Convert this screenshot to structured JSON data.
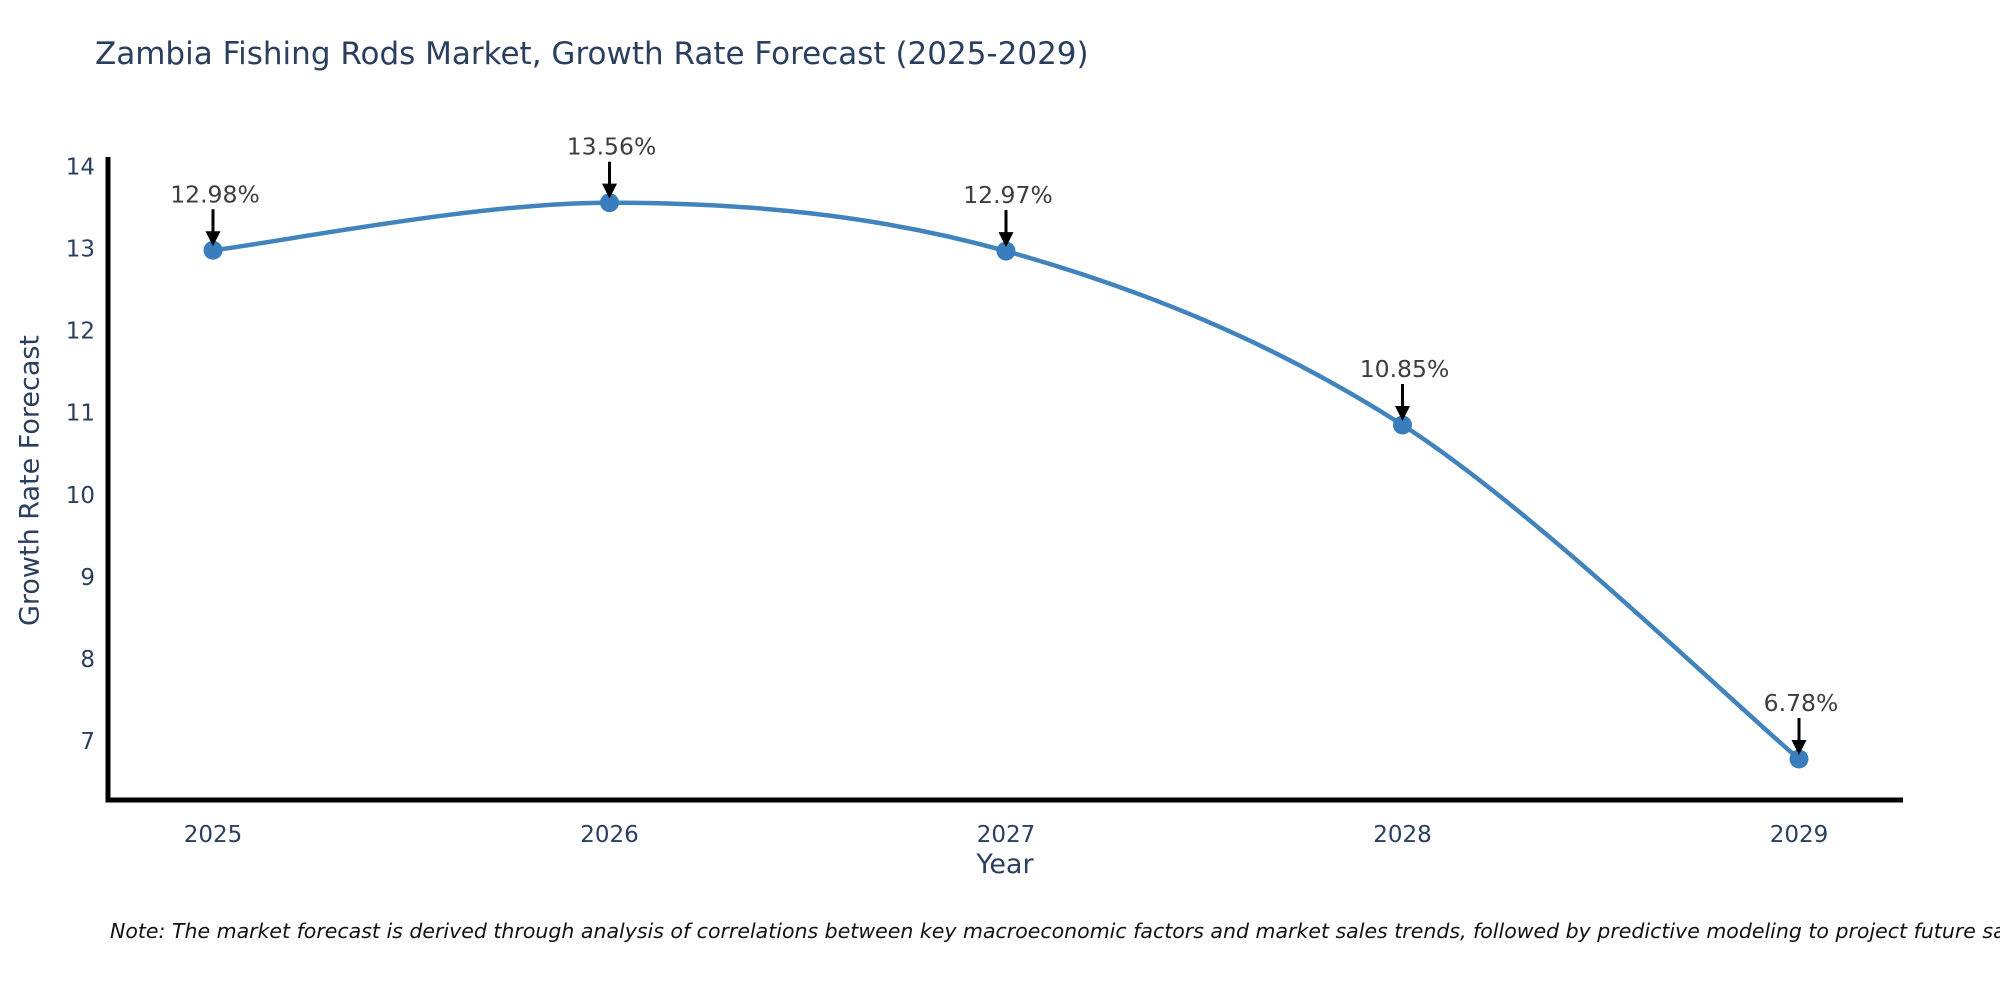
{
  "title": "Zambia Fishing Rods Market, Growth Rate Forecast (2025-2029)",
  "note": "Note: The market forecast is derived through analysis of correlations between key macroeconomic factors and market sales trends, followed by predictive modeling to project future sales",
  "chart_data": {
    "type": "line",
    "title": "Zambia Fishing Rods Market, Growth Rate Forecast (2025-2029)",
    "xlabel": "Year",
    "ylabel": "Growth Rate Forecast",
    "x": [
      2025,
      2026,
      2027,
      2028,
      2029
    ],
    "values": [
      12.98,
      13.56,
      12.97,
      10.85,
      6.78
    ],
    "point_labels": [
      "12.98%",
      "13.56%",
      "12.97%",
      "10.85%",
      "6.78%"
    ],
    "yticks": [
      7,
      8,
      9,
      10,
      11,
      12,
      13,
      14
    ],
    "ylim": [
      6.28,
      14.08
    ],
    "grid": false,
    "legend_position": "none",
    "line_shape": "spline",
    "annotation_arrows": true,
    "colors": {
      "line": "#4183bd",
      "marker": "#3a7dbd",
      "axis": "#000000",
      "tick_text": "#2a3f5f",
      "annotation_text": "#3d3d3d",
      "arrow": "#000000",
      "background": "#ffffff"
    }
  }
}
